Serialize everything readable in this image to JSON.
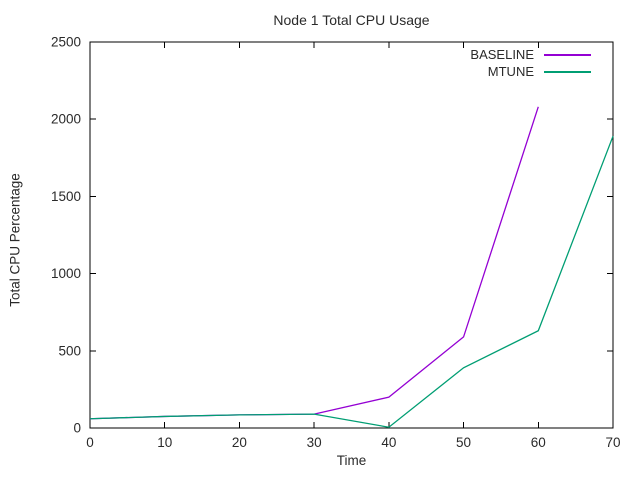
{
  "chart_data": {
    "type": "line",
    "title": "Node 1 Total CPU Usage",
    "xlabel": "Time",
    "ylabel": "Total CPU Percentage",
    "xlim": [
      0,
      70
    ],
    "ylim": [
      0,
      2500
    ],
    "x_ticks": [
      0,
      10,
      20,
      30,
      40,
      50,
      60,
      70
    ],
    "y_ticks": [
      0,
      500,
      1000,
      1500,
      2000,
      2500
    ],
    "grid": false,
    "legend_position": "top-right-inside",
    "axis_color": "#000000",
    "text_color": "#2a2a2a",
    "series": [
      {
        "name": "BASELINE",
        "color": "#9400D3",
        "points": [
          [
            0,
            60
          ],
          [
            10,
            75
          ],
          [
            20,
            85
          ],
          [
            30,
            90
          ],
          [
            40,
            200
          ],
          [
            50,
            590
          ],
          [
            60,
            2080
          ]
        ]
      },
      {
        "name": "MTUNE",
        "color": "#009E73",
        "points": [
          [
            0,
            60
          ],
          [
            10,
            75
          ],
          [
            20,
            85
          ],
          [
            30,
            90
          ],
          [
            40,
            5
          ],
          [
            50,
            390
          ],
          [
            60,
            630
          ],
          [
            70,
            1890
          ]
        ]
      }
    ]
  }
}
